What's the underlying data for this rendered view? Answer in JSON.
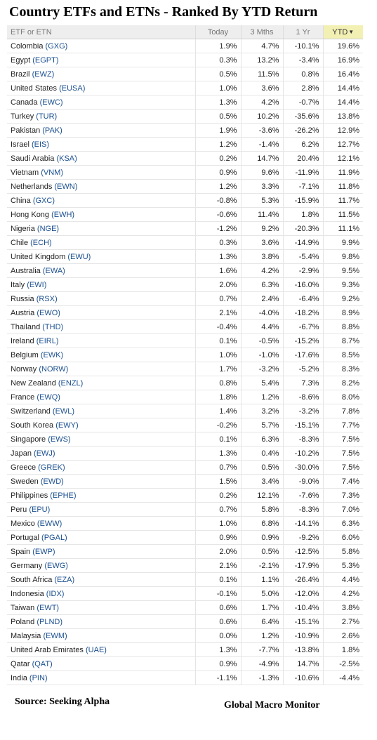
{
  "title": "Country ETFs and ETNs - Ranked By YTD Return",
  "source": "Source:  Seeking Alpha",
  "credit": "Global Macro Monitor",
  "colors": {
    "positive": "#5a8a00",
    "negative": "#b00010",
    "ticker": "#1a4f8f",
    "ytd_header_bg": "#f3f0b4"
  },
  "chart_data": {
    "type": "table",
    "title": "Country ETFs and ETNs - Ranked By YTD Return",
    "columns": [
      "ETF or ETN",
      "Today",
      "3 Mths",
      "1 Yr",
      "YTD"
    ],
    "sorted_by": "YTD",
    "sort_direction": "descending",
    "rows": [
      {
        "country": "Colombia",
        "ticker": "(GXG)",
        "today": "1.9%",
        "m3": "4.7%",
        "y1": "-10.1%",
        "ytd": "19.6%"
      },
      {
        "country": "Egypt",
        "ticker": "(EGPT)",
        "today": "0.3%",
        "m3": "13.2%",
        "y1": "-3.4%",
        "ytd": "16.9%"
      },
      {
        "country": "Brazil",
        "ticker": "(EWZ)",
        "today": "0.5%",
        "m3": "11.5%",
        "y1": "0.8%",
        "ytd": "16.4%"
      },
      {
        "country": "United States",
        "ticker": "(EUSA)",
        "today": "1.0%",
        "m3": "3.6%",
        "y1": "2.8%",
        "ytd": "14.4%"
      },
      {
        "country": "Canada",
        "ticker": "(EWC)",
        "today": "1.3%",
        "m3": "4.2%",
        "y1": "-0.7%",
        "ytd": "14.4%"
      },
      {
        "country": "Turkey",
        "ticker": "(TUR)",
        "today": "0.5%",
        "m3": "10.2%",
        "y1": "-35.6%",
        "ytd": "13.8%"
      },
      {
        "country": "Pakistan",
        "ticker": "(PAK)",
        "today": "1.9%",
        "m3": "-3.6%",
        "y1": "-26.2%",
        "ytd": "12.9%"
      },
      {
        "country": "Israel",
        "ticker": "(EIS)",
        "today": "1.2%",
        "m3": "-1.4%",
        "y1": "6.2%",
        "ytd": "12.7%"
      },
      {
        "country": "Saudi Arabia",
        "ticker": "(KSA)",
        "today": "0.2%",
        "m3": "14.7%",
        "y1": "20.4%",
        "ytd": "12.1%"
      },
      {
        "country": "Vietnam",
        "ticker": "(VNM)",
        "today": "0.9%",
        "m3": "9.6%",
        "y1": "-11.9%",
        "ytd": "11.9%"
      },
      {
        "country": "Netherlands",
        "ticker": "(EWN)",
        "today": "1.2%",
        "m3": "3.3%",
        "y1": "-7.1%",
        "ytd": "11.8%"
      },
      {
        "country": "China",
        "ticker": "(GXC)",
        "today": "-0.8%",
        "m3": "5.3%",
        "y1": "-15.9%",
        "ytd": "11.7%"
      },
      {
        "country": "Hong Kong",
        "ticker": "(EWH)",
        "today": "-0.6%",
        "m3": "11.4%",
        "y1": "1.8%",
        "ytd": "11.5%"
      },
      {
        "country": "Nigeria",
        "ticker": "(NGE)",
        "today": "-1.2%",
        "m3": "9.2%",
        "y1": "-20.3%",
        "ytd": "11.1%"
      },
      {
        "country": "Chile",
        "ticker": "(ECH)",
        "today": "0.3%",
        "m3": "3.6%",
        "y1": "-14.9%",
        "ytd": "9.9%"
      },
      {
        "country": "United Kingdom",
        "ticker": "(EWU)",
        "today": "1.3%",
        "m3": "3.8%",
        "y1": "-5.4%",
        "ytd": "9.8%"
      },
      {
        "country": "Australia",
        "ticker": "(EWA)",
        "today": "1.6%",
        "m3": "4.2%",
        "y1": "-2.9%",
        "ytd": "9.5%"
      },
      {
        "country": "Italy",
        "ticker": "(EWI)",
        "today": "2.0%",
        "m3": "6.3%",
        "y1": "-16.0%",
        "ytd": "9.3%"
      },
      {
        "country": "Russia",
        "ticker": "(RSX)",
        "today": "0.7%",
        "m3": "2.4%",
        "y1": "-6.4%",
        "ytd": "9.2%"
      },
      {
        "country": "Austria",
        "ticker": "(EWO)",
        "today": "2.1%",
        "m3": "-4.0%",
        "y1": "-18.2%",
        "ytd": "8.9%"
      },
      {
        "country": "Thailand",
        "ticker": "(THD)",
        "today": "-0.4%",
        "m3": "4.4%",
        "y1": "-6.7%",
        "ytd": "8.8%"
      },
      {
        "country": "Ireland",
        "ticker": "(EIRL)",
        "today": "0.1%",
        "m3": "-0.5%",
        "y1": "-15.2%",
        "ytd": "8.7%"
      },
      {
        "country": "Belgium",
        "ticker": "(EWK)",
        "today": "1.0%",
        "m3": "-1.0%",
        "y1": "-17.6%",
        "ytd": "8.5%"
      },
      {
        "country": "Norway",
        "ticker": "(NORW)",
        "today": "1.7%",
        "m3": "-3.2%",
        "y1": "-5.2%",
        "ytd": "8.3%"
      },
      {
        "country": "New Zealand",
        "ticker": "(ENZL)",
        "today": "0.8%",
        "m3": "5.4%",
        "y1": "7.3%",
        "ytd": "8.2%"
      },
      {
        "country": "France",
        "ticker": "(EWQ)",
        "today": "1.8%",
        "m3": "1.2%",
        "y1": "-8.6%",
        "ytd": "8.0%"
      },
      {
        "country": "Switzerland",
        "ticker": "(EWL)",
        "today": "1.4%",
        "m3": "3.2%",
        "y1": "-3.2%",
        "ytd": "7.8%"
      },
      {
        "country": "South Korea",
        "ticker": "(EWY)",
        "today": "-0.2%",
        "m3": "5.7%",
        "y1": "-15.1%",
        "ytd": "7.7%"
      },
      {
        "country": "Singapore",
        "ticker": "(EWS)",
        "today": "0.1%",
        "m3": "6.3%",
        "y1": "-8.3%",
        "ytd": "7.5%"
      },
      {
        "country": "Japan",
        "ticker": "(EWJ)",
        "today": "1.3%",
        "m3": "0.4%",
        "y1": "-10.2%",
        "ytd": "7.5%"
      },
      {
        "country": "Greece",
        "ticker": "(GREK)",
        "today": "0.7%",
        "m3": "0.5%",
        "y1": "-30.0%",
        "ytd": "7.5%"
      },
      {
        "country": "Sweden",
        "ticker": "(EWD)",
        "today": "1.5%",
        "m3": "3.4%",
        "y1": "-9.0%",
        "ytd": "7.4%"
      },
      {
        "country": "Philippines",
        "ticker": "(EPHE)",
        "today": "0.2%",
        "m3": "12.1%",
        "y1": "-7.6%",
        "ytd": "7.3%"
      },
      {
        "country": "Peru",
        "ticker": "(EPU)",
        "today": "0.7%",
        "m3": "5.8%",
        "y1": "-8.3%",
        "ytd": "7.0%"
      },
      {
        "country": "Mexico",
        "ticker": "(EWW)",
        "today": "1.0%",
        "m3": "6.8%",
        "y1": "-14.1%",
        "ytd": "6.3%"
      },
      {
        "country": "Portugal",
        "ticker": "(PGAL)",
        "today": "0.9%",
        "m3": "0.9%",
        "y1": "-9.2%",
        "ytd": "6.0%"
      },
      {
        "country": "Spain",
        "ticker": "(EWP)",
        "today": "2.0%",
        "m3": "0.5%",
        "y1": "-12.5%",
        "ytd": "5.8%"
      },
      {
        "country": "Germany",
        "ticker": "(EWG)",
        "today": "2.1%",
        "m3": "-2.1%",
        "y1": "-17.9%",
        "ytd": "5.3%"
      },
      {
        "country": "South Africa",
        "ticker": "(EZA)",
        "today": "0.1%",
        "m3": "1.1%",
        "y1": "-26.4%",
        "ytd": "4.4%"
      },
      {
        "country": "Indonesia",
        "ticker": "(IDX)",
        "today": "-0.1%",
        "m3": "5.0%",
        "y1": "-12.0%",
        "ytd": "4.2%"
      },
      {
        "country": "Taiwan",
        "ticker": "(EWT)",
        "today": "0.6%",
        "m3": "1.7%",
        "y1": "-10.4%",
        "ytd": "3.8%"
      },
      {
        "country": "Poland",
        "ticker": "(PLND)",
        "today": "0.6%",
        "m3": "6.4%",
        "y1": "-15.1%",
        "ytd": "2.7%"
      },
      {
        "country": "Malaysia",
        "ticker": "(EWM)",
        "today": "0.0%",
        "m3": "1.2%",
        "y1": "-10.9%",
        "ytd": "2.6%"
      },
      {
        "country": "United Arab Emirates",
        "ticker": "(UAE)",
        "today": "1.3%",
        "m3": "-7.7%",
        "y1": "-13.8%",
        "ytd": "1.8%"
      },
      {
        "country": "Qatar",
        "ticker": "(QAT)",
        "today": "0.9%",
        "m3": "-4.9%",
        "y1": "14.7%",
        "ytd": "-2.5%"
      },
      {
        "country": "India",
        "ticker": "(PIN)",
        "today": "-1.1%",
        "m3": "-1.3%",
        "y1": "-10.6%",
        "ytd": "-4.4%"
      }
    ]
  }
}
